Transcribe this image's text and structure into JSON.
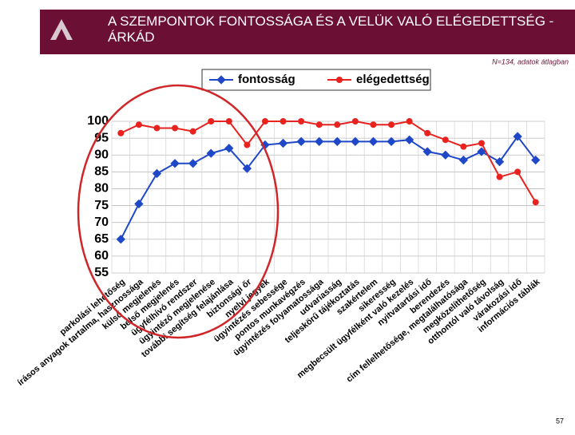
{
  "header": {
    "title": "A SZEMPONTOK FONTOSSÁGA ÉS A VELÜK VALÓ ELÉGEDETTSÉG - ÁRKÁD"
  },
  "note": "N=134, adatok átlagban",
  "page_number": "57",
  "chart_data": {
    "type": "line",
    "categories": [
      "parkolási lehetőség",
      "írásos anyagok tartalma, hasznossága",
      "külső megjelenés",
      "belső megjelenés",
      "ügyfélhívó rendszer",
      "ügyintéző megjelenése",
      "további segítség felajánlása",
      "biztonsági őr",
      "nyelvi jegyek",
      "ügyintézés sebessége",
      "pontos munkavégzés",
      "ügyintézés folyamatossága",
      "udvariasság",
      "teljeskörű tájékoztatás",
      "szakértelem",
      "sikeresség",
      "megbecsült ügyfélként való kezelés",
      "nyitvatartási idő",
      "berendezés",
      "cím fellelhetősége, megtalálhatósága",
      "megközelíthetőség",
      "otthontól való távolság",
      "várakozási idő",
      "információs táblák"
    ],
    "series": [
      {
        "name": "fontosság",
        "color": "#1f48c8",
        "values": [
          65,
          75.5,
          84.5,
          87.5,
          87.5,
          90.5,
          92,
          86,
          93,
          93.5,
          94,
          94,
          94,
          94,
          94,
          94,
          94.5,
          91,
          90,
          88.5,
          91,
          88,
          95.5,
          88.5
        ]
      },
      {
        "name": "elégedettség",
        "color": "#e8231f",
        "values": [
          96.5,
          99,
          98,
          98,
          97,
          100,
          100,
          93,
          100,
          100,
          100,
          99,
          99,
          100,
          99,
          99,
          100,
          96.5,
          94.5,
          92.5,
          93.5,
          83.5,
          85,
          76
        ]
      }
    ],
    "ylim": [
      55,
      100
    ],
    "yticks": [
      55,
      60,
      65,
      70,
      75,
      80,
      85,
      90,
      95,
      100
    ],
    "grid": true,
    "legend": "top"
  }
}
